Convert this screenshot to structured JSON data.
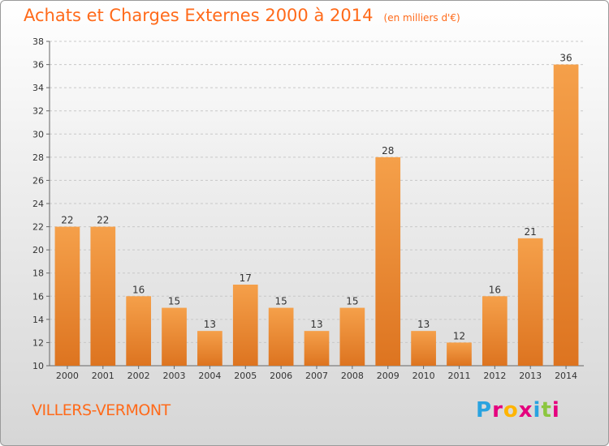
{
  "header": {
    "title": "Achats et Charges Externes 2000 à 2014",
    "unit_note": "(en milliers d'€)"
  },
  "footer": {
    "town": "VILLERS-VERMONT",
    "logo_letters": [
      "P",
      "r",
      "o",
      "x",
      "i",
      "t",
      "i"
    ],
    "logo_colors": [
      "#29a3e0",
      "#e5007e",
      "#ffb400",
      "#e5007e",
      "#29a3e0",
      "#8cc63f",
      "#e5007e"
    ]
  },
  "colors": {
    "bar_light": "#f5a04a",
    "bar_dark": "#dd7420",
    "title": "#ff6a1a",
    "grid": "#c8c8c8"
  },
  "chart_data": {
    "type": "bar",
    "title": "Achats et Charges Externes 2000 à 2014",
    "subtitle": "(en milliers d'€)",
    "categories": [
      "2000",
      "2001",
      "2002",
      "2003",
      "2004",
      "2005",
      "2006",
      "2007",
      "2008",
      "2009",
      "2010",
      "2011",
      "2012",
      "2013",
      "2014"
    ],
    "values": [
      22,
      22,
      16,
      15,
      13,
      17,
      15,
      13,
      15,
      28,
      13,
      12,
      16,
      21,
      36
    ],
    "ylim": [
      10,
      38
    ],
    "yticks": [
      10,
      12,
      14,
      16,
      18,
      20,
      22,
      24,
      26,
      28,
      30,
      32,
      34,
      36,
      38
    ],
    "grid": true,
    "data_labels": true
  }
}
